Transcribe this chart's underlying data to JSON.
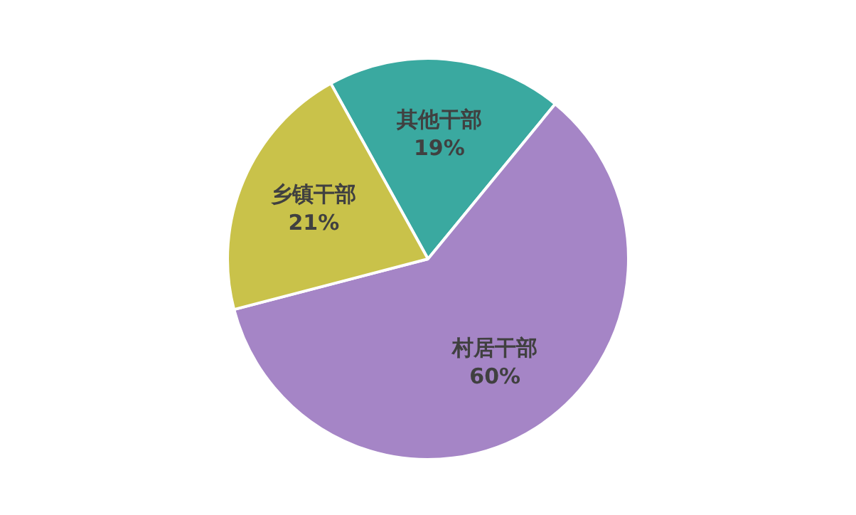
{
  "chart_data": {
    "type": "pie",
    "categories": [
      "其他干部",
      "村居干部",
      "乡镇干部"
    ],
    "values": [
      19,
      60,
      21
    ],
    "value_labels": [
      "19%",
      "60%",
      "21%"
    ],
    "colors": [
      "#3aa9a0",
      "#a585c6",
      "#c9c24a"
    ],
    "legend": false
  }
}
